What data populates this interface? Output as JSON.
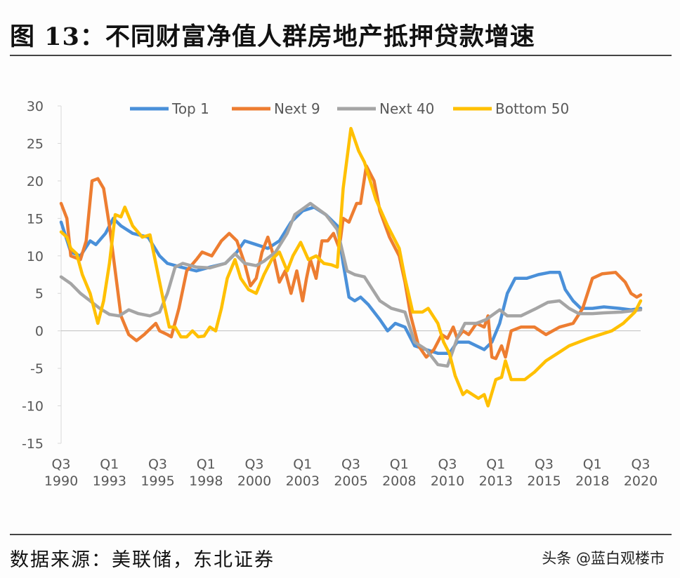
{
  "title": "图 13：不同财富净值人群房地产抵押贷款增速",
  "source": "数据来源：美联储，东北证券",
  "watermark": "头条 @蓝白观楼市",
  "chart_data": {
    "type": "line",
    "title": "",
    "xlabel": "",
    "ylabel": "",
    "ylim": [
      -15,
      30
    ],
    "yticks": [
      30,
      25,
      20,
      15,
      10,
      5,
      0,
      -5,
      -10,
      -15
    ],
    "xlim": [
      1990.5,
      2020.5
    ],
    "xticks": [
      {
        "x": 1990.5,
        "label": [
          "Q3",
          "1990"
        ]
      },
      {
        "x": 1993.0,
        "label": [
          "Q1",
          "1993"
        ]
      },
      {
        "x": 1995.5,
        "label": [
          "Q3",
          "1995"
        ]
      },
      {
        "x": 1998.0,
        "label": [
          "Q1",
          "1998"
        ]
      },
      {
        "x": 2000.5,
        "label": [
          "Q3",
          "2000"
        ]
      },
      {
        "x": 2003.0,
        "label": [
          "Q1",
          "2003"
        ]
      },
      {
        "x": 2005.5,
        "label": [
          "Q3",
          "2005"
        ]
      },
      {
        "x": 2008.0,
        "label": [
          "Q1",
          "2008"
        ]
      },
      {
        "x": 2010.5,
        "label": [
          "Q3",
          "2010"
        ]
      },
      {
        "x": 2013.0,
        "label": [
          "Q1",
          "2013"
        ]
      },
      {
        "x": 2015.5,
        "label": [
          "Q3",
          "2015"
        ]
      },
      {
        "x": 2018.0,
        "label": [
          "Q1",
          "2018"
        ]
      },
      {
        "x": 2020.5,
        "label": [
          "Q3",
          "2020"
        ]
      }
    ],
    "grid": false,
    "zero_line": true,
    "legend_position": "top",
    "series": [
      {
        "name": "Top 1",
        "color": "#4a90d9",
        "points": [
          [
            1990.5,
            14.5
          ],
          [
            1991,
            10.5
          ],
          [
            1991.5,
            10
          ],
          [
            1992,
            12
          ],
          [
            1992.3,
            11.5
          ],
          [
            1992.8,
            13
          ],
          [
            1993.2,
            15
          ],
          [
            1993.6,
            14
          ],
          [
            1994.2,
            13
          ],
          [
            1995,
            12.5
          ],
          [
            1995.6,
            10
          ],
          [
            1996,
            9
          ],
          [
            1996.7,
            8.5
          ],
          [
            1997.5,
            8
          ],
          [
            1998.2,
            8.5
          ],
          [
            1999,
            9
          ],
          [
            1999.6,
            10.5
          ],
          [
            2000,
            12
          ],
          [
            2000.6,
            11.5
          ],
          [
            2001.2,
            11
          ],
          [
            2001.8,
            12
          ],
          [
            2002.4,
            14.5
          ],
          [
            2003,
            16
          ],
          [
            2003.6,
            16.5
          ],
          [
            2004.2,
            15.5
          ],
          [
            2004.8,
            14
          ],
          [
            2005.1,
            9
          ],
          [
            2005.4,
            4.5
          ],
          [
            2005.7,
            4
          ],
          [
            2006,
            4.5
          ],
          [
            2006.4,
            3.5
          ],
          [
            2007,
            1.5
          ],
          [
            2007.4,
            0
          ],
          [
            2007.8,
            1
          ],
          [
            2008.3,
            0.5
          ],
          [
            2008.8,
            -2
          ],
          [
            2009.4,
            -2.5
          ],
          [
            2010,
            -3
          ],
          [
            2010.6,
            -3
          ],
          [
            2011,
            -1.5
          ],
          [
            2011.6,
            -1.5
          ],
          [
            2012.4,
            -2.5
          ],
          [
            2012.8,
            -1.5
          ],
          [
            2013.2,
            1
          ],
          [
            2013.6,
            5
          ],
          [
            2014,
            7
          ],
          [
            2014.6,
            7
          ],
          [
            2015.2,
            7.5
          ],
          [
            2015.8,
            7.8
          ],
          [
            2016.3,
            7.8
          ],
          [
            2016.6,
            5.5
          ],
          [
            2017,
            4
          ],
          [
            2017.4,
            3
          ],
          [
            2018,
            3
          ],
          [
            2018.6,
            3.2
          ],
          [
            2019.4,
            3
          ],
          [
            2020,
            2.8
          ],
          [
            2020.5,
            3
          ]
        ]
      },
      {
        "name": "Next 9",
        "color": "#ed7d31",
        "points": [
          [
            1990.5,
            17
          ],
          [
            1990.8,
            15
          ],
          [
            1991,
            10
          ],
          [
            1991.5,
            9.5
          ],
          [
            1991.8,
            12
          ],
          [
            1992.1,
            20
          ],
          [
            1992.4,
            20.3
          ],
          [
            1992.7,
            19
          ],
          [
            1993,
            14
          ],
          [
            1993.3,
            8
          ],
          [
            1993.6,
            2
          ],
          [
            1994,
            -0.5
          ],
          [
            1994.4,
            -1.3
          ],
          [
            1994.8,
            -0.5
          ],
          [
            1995.2,
            0.5
          ],
          [
            1995.4,
            1
          ],
          [
            1995.6,
            0
          ],
          [
            1996,
            -0.5
          ],
          [
            1996.2,
            -0.8
          ],
          [
            1996.6,
            3
          ],
          [
            1997,
            8
          ],
          [
            1997.5,
            9.5
          ],
          [
            1997.8,
            10.5
          ],
          [
            1998.3,
            10
          ],
          [
            1998.8,
            12
          ],
          [
            1999.2,
            13
          ],
          [
            1999.6,
            12
          ],
          [
            2000,
            9
          ],
          [
            2000.3,
            6
          ],
          [
            2000.6,
            7
          ],
          [
            2000.9,
            10.5
          ],
          [
            2001.2,
            12.5
          ],
          [
            2001.5,
            10
          ],
          [
            2001.8,
            6.5
          ],
          [
            2002.1,
            8
          ],
          [
            2002.4,
            5
          ],
          [
            2002.7,
            8
          ],
          [
            2003,
            4
          ],
          [
            2003.2,
            7
          ],
          [
            2003.4,
            9.5
          ],
          [
            2003.7,
            7
          ],
          [
            2004,
            12
          ],
          [
            2004.3,
            12
          ],
          [
            2004.6,
            13
          ],
          [
            2004.9,
            11
          ],
          [
            2005.1,
            15
          ],
          [
            2005.4,
            14.5
          ],
          [
            2005.8,
            17
          ],
          [
            2006,
            17
          ],
          [
            2006.3,
            22
          ],
          [
            2006.7,
            20
          ],
          [
            2007,
            16
          ],
          [
            2007.5,
            12.5
          ],
          [
            2008,
            10
          ],
          [
            2008.3,
            6.5
          ],
          [
            2008.6,
            2
          ],
          [
            2009,
            -2
          ],
          [
            2009.4,
            -3.5
          ],
          [
            2009.8,
            -2.5
          ],
          [
            2010.2,
            -0.5
          ],
          [
            2010.5,
            -1
          ],
          [
            2010.8,
            0.5
          ],
          [
            2011,
            -1
          ],
          [
            2011.3,
            0
          ],
          [
            2011.6,
            -0.5
          ],
          [
            2012,
            1
          ],
          [
            2012.4,
            0.5
          ],
          [
            2012.6,
            2
          ],
          [
            2012.8,
            -3.5
          ],
          [
            2013,
            -3.7
          ],
          [
            2013.3,
            -2
          ],
          [
            2013.5,
            -3.5
          ],
          [
            2013.8,
            0
          ],
          [
            2014.3,
            0.5
          ],
          [
            2015,
            0.5
          ],
          [
            2015.6,
            -0.5
          ],
          [
            2016.3,
            0.5
          ],
          [
            2017,
            1
          ],
          [
            2017.5,
            3
          ],
          [
            2018,
            7
          ],
          [
            2018.5,
            7.6
          ],
          [
            2019.2,
            7.8
          ],
          [
            2019.7,
            6.5
          ],
          [
            2020,
            5
          ],
          [
            2020.3,
            4.5
          ],
          [
            2020.5,
            4.8
          ]
        ]
      },
      {
        "name": "Next 40",
        "color": "#a5a5a5",
        "points": [
          [
            1990.5,
            7.2
          ],
          [
            1991,
            6.3
          ],
          [
            1991.5,
            5
          ],
          [
            1992,
            4
          ],
          [
            1992.5,
            3
          ],
          [
            1993,
            2.2
          ],
          [
            1993.5,
            2
          ],
          [
            1994,
            2.8
          ],
          [
            1994.5,
            2.3
          ],
          [
            1995.1,
            2
          ],
          [
            1995.6,
            2.5
          ],
          [
            1996,
            5
          ],
          [
            1996.4,
            8.5
          ],
          [
            1996.8,
            9
          ],
          [
            1997.5,
            8.5
          ],
          [
            1998.2,
            8.4
          ],
          [
            1999,
            9
          ],
          [
            1999.5,
            10.3
          ],
          [
            2000,
            9
          ],
          [
            2000.6,
            8.7
          ],
          [
            2001,
            9.3
          ],
          [
            2001.6,
            10.5
          ],
          [
            2002.2,
            13
          ],
          [
            2002.6,
            15.5
          ],
          [
            2003.4,
            17
          ],
          [
            2004.2,
            15.5
          ],
          [
            2004.8,
            13.5
          ],
          [
            2005.3,
            8
          ],
          [
            2005.7,
            7.5
          ],
          [
            2006.2,
            7.2
          ],
          [
            2007,
            4
          ],
          [
            2007.6,
            3
          ],
          [
            2008.3,
            2.5
          ],
          [
            2008.8,
            -1.5
          ],
          [
            2009.4,
            -2.5
          ],
          [
            2010,
            -4.5
          ],
          [
            2010.5,
            -4.7
          ],
          [
            2011,
            -1
          ],
          [
            2011.4,
            1
          ],
          [
            2012,
            1
          ],
          [
            2012.5,
            1.5
          ],
          [
            2013.2,
            2.8
          ],
          [
            2013.6,
            2
          ],
          [
            2014.3,
            2
          ],
          [
            2015.1,
            3
          ],
          [
            2015.7,
            3.8
          ],
          [
            2016.3,
            4
          ],
          [
            2016.8,
            3
          ],
          [
            2017.3,
            2.3
          ],
          [
            2018,
            2.3
          ],
          [
            2018.6,
            2.4
          ],
          [
            2019.5,
            2.5
          ],
          [
            2020.5,
            2.8
          ]
        ]
      },
      {
        "name": "Bottom 50",
        "color": "#ffc000",
        "points": [
          [
            1990.5,
            13.2
          ],
          [
            1990.8,
            12.5
          ],
          [
            1991,
            11
          ],
          [
            1991.3,
            10.3
          ],
          [
            1991.6,
            7.5
          ],
          [
            1992,
            5
          ],
          [
            1992.4,
            1
          ],
          [
            1992.7,
            4
          ],
          [
            1993,
            9
          ],
          [
            1993.3,
            15.5
          ],
          [
            1993.6,
            15.2
          ],
          [
            1993.8,
            16.5
          ],
          [
            1994.2,
            14
          ],
          [
            1994.7,
            12.5
          ],
          [
            1995.1,
            12.8
          ],
          [
            1995.4,
            9
          ],
          [
            1995.8,
            4
          ],
          [
            1996.1,
            0.5
          ],
          [
            1996.4,
            0.5
          ],
          [
            1996.7,
            -0.8
          ],
          [
            1997,
            -0.8
          ],
          [
            1997.3,
            0
          ],
          [
            1997.6,
            -0.8
          ],
          [
            1997.9,
            -0.7
          ],
          [
            1998.2,
            0.5
          ],
          [
            1998.5,
            0
          ],
          [
            1998.8,
            3
          ],
          [
            1999.1,
            7
          ],
          [
            1999.5,
            9.5
          ],
          [
            1999.8,
            7
          ],
          [
            2000.2,
            5.5
          ],
          [
            2000.6,
            5
          ],
          [
            2001,
            7.5
          ],
          [
            2001.4,
            9.5
          ],
          [
            2001.8,
            10.5
          ],
          [
            2002.2,
            8
          ],
          [
            2002.5,
            10
          ],
          [
            2002.9,
            11.8
          ],
          [
            2003.3,
            9.5
          ],
          [
            2003.7,
            10
          ],
          [
            2004.1,
            9
          ],
          [
            2004.5,
            8.8
          ],
          [
            2004.8,
            8.5
          ],
          [
            2005.1,
            19
          ],
          [
            2005.5,
            27
          ],
          [
            2005.9,
            24
          ],
          [
            2006.2,
            22.5
          ],
          [
            2006.8,
            17.5
          ],
          [
            2007.4,
            14
          ],
          [
            2008,
            11
          ],
          [
            2008.3,
            7
          ],
          [
            2008.7,
            2.5
          ],
          [
            2009.2,
            2.5
          ],
          [
            2009.5,
            3
          ],
          [
            2010,
            1
          ],
          [
            2010.3,
            -1.5
          ],
          [
            2010.6,
            -3
          ],
          [
            2010.9,
            -6
          ],
          [
            2011.3,
            -8.5
          ],
          [
            2011.5,
            -8
          ],
          [
            2011.8,
            -8.5
          ],
          [
            2012.1,
            -9
          ],
          [
            2012.4,
            -8.5
          ],
          [
            2012.6,
            -10
          ],
          [
            2013,
            -6.5
          ],
          [
            2013.3,
            -6.2
          ],
          [
            2013.5,
            -4
          ],
          [
            2013.8,
            -6.5
          ],
          [
            2014.5,
            -6.5
          ],
          [
            2015,
            -5.5
          ],
          [
            2015.6,
            -4
          ],
          [
            2016.2,
            -3
          ],
          [
            2016.8,
            -2
          ],
          [
            2017.3,
            -1.5
          ],
          [
            2017.8,
            -1
          ],
          [
            2018.4,
            -0.5
          ],
          [
            2019,
            0
          ],
          [
            2019.6,
            1
          ],
          [
            2020.2,
            2.5
          ],
          [
            2020.5,
            4
          ]
        ]
      }
    ]
  }
}
